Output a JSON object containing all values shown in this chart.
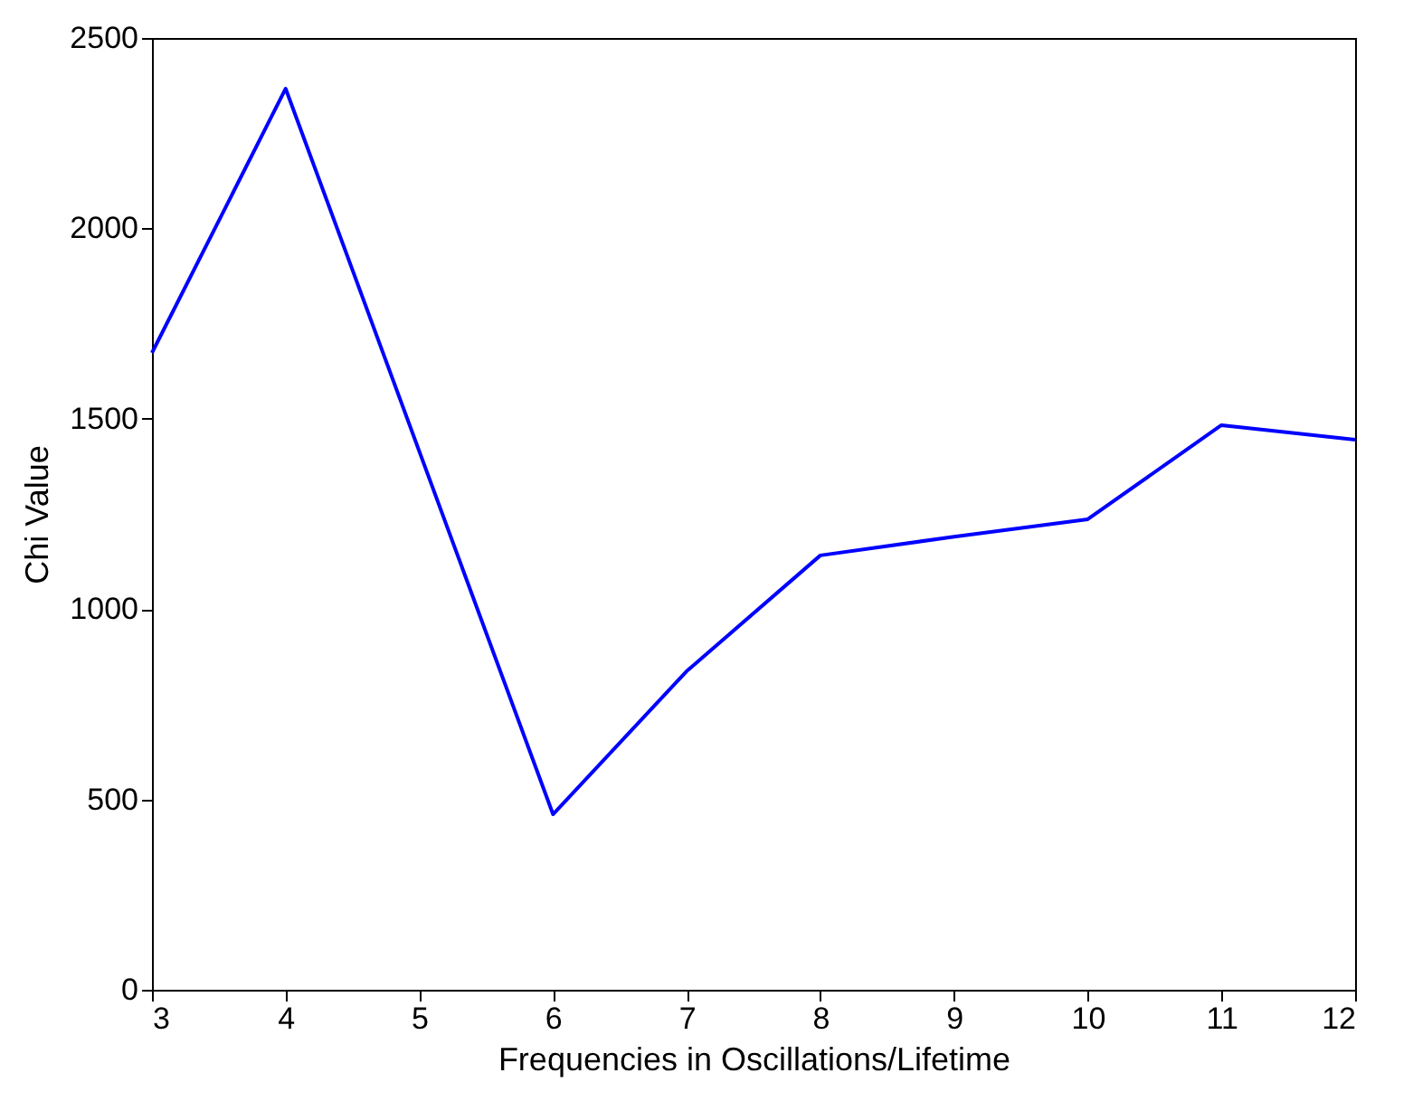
{
  "chart_data": {
    "type": "line",
    "xlabel": "Frequencies in Oscillations/Lifetime",
    "ylabel": "Chi Value",
    "x": [
      3,
      4,
      6,
      7,
      8,
      9,
      10,
      11,
      12
    ],
    "series": [
      {
        "color": "#0000ff",
        "values": [
          1673,
          2367,
          461,
          837,
          1141,
          1190,
          1236,
          1483,
          1445
        ]
      }
    ],
    "xlim": [
      3,
      12
    ],
    "xticks": [
      3,
      4,
      5,
      6,
      7,
      8,
      9,
      10,
      11,
      12
    ],
    "ylim": [
      0,
      2500
    ],
    "yticks": [
      0,
      500,
      1000,
      1500,
      2000,
      2500
    ],
    "grid": false,
    "legend": false,
    "marker": "none",
    "line_style": "solid"
  }
}
